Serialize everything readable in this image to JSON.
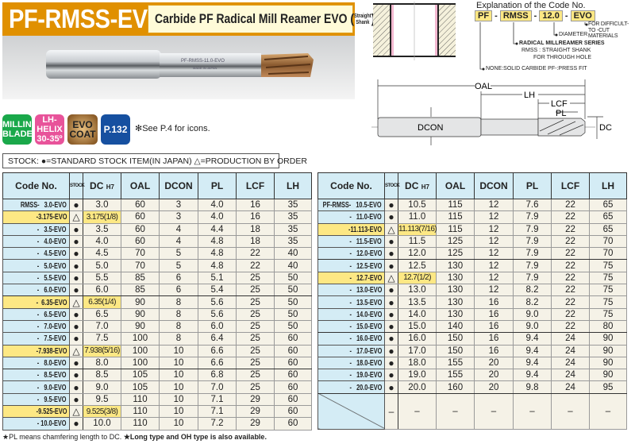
{
  "header": {
    "model": "PF-RMSS-EVO",
    "title": "Carbide PF Radical Mill Reamer EVO",
    "shank_type": [
      "Straight",
      "Shank"
    ]
  },
  "product_image": {
    "engraving": "PF-RMSS-11.0-EVO",
    "made_in": "MADE IN JAPAN"
  },
  "icons": [
    {
      "lines": [
        "MILLING",
        "BLADE"
      ],
      "color": "#1aa84a"
    },
    {
      "lines": [
        "LH-HELIX",
        "30-35º"
      ],
      "color": "#e8539a"
    },
    {
      "lines": [
        "EVO",
        "COAT"
      ],
      "color": "#a0702a"
    },
    {
      "lines": [
        "P.132"
      ],
      "color": "#1650a0"
    }
  ],
  "icons_note": "✻See P.4 for icons.",
  "stock_legend": "STOCK: ●=STANDARD STOCK ITEM(IN JAPAN)  △=PRODUCTION BY ORDER",
  "code_explanation": {
    "title": "Explanation of the Code No.",
    "parts": [
      "PF",
      "RMSS",
      "12.0",
      "EVO"
    ],
    "notes": {
      "evo": "FOR DIFFICULT-TO -CUT MATERIALS",
      "diameter": "DIAMETER",
      "series": "RADICAL MILLREAMER SERIES",
      "rmss": "RMSS : STRAIGHT SHANK",
      "rmss2": "FOR THROUGH HOLE",
      "pf": "NONE:SOLID CARBIDE  PF-:PRESS FIT"
    }
  },
  "diagram_labels": {
    "oal": "OAL",
    "lh": "LH",
    "lcf": "LCF",
    "pl": "PL",
    "dcon": "DCON",
    "dc": "DC"
  },
  "table_headers": {
    "code": "Code No.",
    "stock": "STOCK",
    "dc": "DC",
    "dc_tol": "H7",
    "oal": "OAL",
    "dcon": "DCON",
    "pl": "PL",
    "lcf": "LCF",
    "lh": "LH"
  },
  "left_table": [
    {
      "code": "RMSS-   3.0-EVO",
      "stock": "●",
      "dc": "3.0",
      "oal": "60",
      "dcon": "3",
      "pl": "4.0",
      "lcf": "16",
      "lh": "35"
    },
    {
      "code": "-3.175-EVO",
      "stock": "△",
      "dc": "3.175(1/8)",
      "oal": "60",
      "dcon": "3",
      "pl": "4.0",
      "lcf": "16",
      "lh": "35",
      "hl": true
    },
    {
      "code": "-   3.5-EVO",
      "stock": "●",
      "dc": "3.5",
      "oal": "60",
      "dcon": "4",
      "pl": "4.4",
      "lcf": "18",
      "lh": "35"
    },
    {
      "code": "-   4.0-EVO",
      "stock": "●",
      "dc": "4.0",
      "oal": "60",
      "dcon": "4",
      "pl": "4.8",
      "lcf": "18",
      "lh": "35"
    },
    {
      "code": "-   4.5-EVO",
      "stock": "●",
      "dc": "4.5",
      "oal": "70",
      "dcon": "5",
      "pl": "4.8",
      "lcf": "22",
      "lh": "40"
    },
    {
      "code": "-   5.0-EVO",
      "stock": "●",
      "dc": "5.0",
      "oal": "70",
      "dcon": "5",
      "pl": "4.8",
      "lcf": "22",
      "lh": "40"
    },
    {
      "code": "-   5.5-EVO",
      "stock": "●",
      "dc": "5.5",
      "oal": "85",
      "dcon": "6",
      "pl": "5.1",
      "lcf": "25",
      "lh": "50"
    },
    {
      "code": "-   6.0-EVO",
      "stock": "●",
      "dc": "6.0",
      "oal": "85",
      "dcon": "6",
      "pl": "5.4",
      "lcf": "25",
      "lh": "50",
      "sep": true
    },
    {
      "code": "-  6.35-EVO",
      "stock": "△",
      "dc": "6.35(1/4)",
      "oal": "90",
      "dcon": "8",
      "pl": "5.6",
      "lcf": "25",
      "lh": "50",
      "hl": true
    },
    {
      "code": "-   6.5-EVO",
      "stock": "●",
      "dc": "6.5",
      "oal": "90",
      "dcon": "8",
      "pl": "5.6",
      "lcf": "25",
      "lh": "50"
    },
    {
      "code": "-   7.0-EVO",
      "stock": "●",
      "dc": "7.0",
      "oal": "90",
      "dcon": "8",
      "pl": "6.0",
      "lcf": "25",
      "lh": "50"
    },
    {
      "code": "-   7.5-EVO",
      "stock": "●",
      "dc": "7.5",
      "oal": "100",
      "dcon": "8",
      "pl": "6.4",
      "lcf": "25",
      "lh": "60"
    },
    {
      "code": "-7.938-EVO",
      "stock": "△",
      "dc": "7.938(5/16)",
      "oal": "100",
      "dcon": "10",
      "pl": "6.6",
      "lcf": "25",
      "lh": "60",
      "hl": true
    },
    {
      "code": "-   8.0-EVO",
      "stock": "●",
      "dc": "8.0",
      "oal": "100",
      "dcon": "10",
      "pl": "6.6",
      "lcf": "25",
      "lh": "60",
      "sep": true
    },
    {
      "code": "-   8.5-EVO",
      "stock": "●",
      "dc": "8.5",
      "oal": "105",
      "dcon": "10",
      "pl": "6.8",
      "lcf": "25",
      "lh": "60"
    },
    {
      "code": "-   9.0-EVO",
      "stock": "●",
      "dc": "9.0",
      "oal": "105",
      "dcon": "10",
      "pl": "7.0",
      "lcf": "25",
      "lh": "60"
    },
    {
      "code": "-   9.5-EVO",
      "stock": "●",
      "dc": "9.5",
      "oal": "110",
      "dcon": "10",
      "pl": "7.1",
      "lcf": "29",
      "lh": "60"
    },
    {
      "code": "-9.525-EVO",
      "stock": "△",
      "dc": "9.525(3/8)",
      "oal": "110",
      "dcon": "10",
      "pl": "7.1",
      "lcf": "29",
      "lh": "60",
      "hl": true
    },
    {
      "code": "- 10.0-EVO",
      "stock": "●",
      "dc": "10.0",
      "oal": "110",
      "dcon": "10",
      "pl": "7.2",
      "lcf": "29",
      "lh": "60"
    }
  ],
  "right_table": [
    {
      "code": "PF-RMSS-   10.5-EVO",
      "stock": "●",
      "dc": "10.5",
      "oal": "115",
      "dcon": "12",
      "pl": "7.6",
      "lcf": "22",
      "lh": "65"
    },
    {
      "code": "-   11.0-EVO",
      "stock": "●",
      "dc": "11.0",
      "oal": "115",
      "dcon": "12",
      "pl": "7.9",
      "lcf": "22",
      "lh": "65"
    },
    {
      "code": "-11.113-EVO",
      "stock": "△",
      "dc": "11.113(7/16)",
      "oal": "115",
      "dcon": "12",
      "pl": "7.9",
      "lcf": "22",
      "lh": "65",
      "hl": true
    },
    {
      "code": "-   11.5-EVO",
      "stock": "●",
      "dc": "11.5",
      "oal": "125",
      "dcon": "12",
      "pl": "7.9",
      "lcf": "22",
      "lh": "70"
    },
    {
      "code": "-   12.0-EVO",
      "stock": "●",
      "dc": "12.0",
      "oal": "125",
      "dcon": "12",
      "pl": "7.9",
      "lcf": "22",
      "lh": "70",
      "sep": true
    },
    {
      "code": "-   12.5-EVO",
      "stock": "●",
      "dc": "12.5",
      "oal": "130",
      "dcon": "12",
      "pl": "7.9",
      "lcf": "22",
      "lh": "75"
    },
    {
      "code": "-   12.7-EVO",
      "stock": "△",
      "dc": "12.7(1/2)",
      "oal": "130",
      "dcon": "12",
      "pl": "7.9",
      "lcf": "22",
      "lh": "75",
      "hl": true
    },
    {
      "code": "-   13.0-EVO",
      "stock": "●",
      "dc": "13.0",
      "oal": "130",
      "dcon": "12",
      "pl": "8.2",
      "lcf": "22",
      "lh": "75"
    },
    {
      "code": "-   13.5-EVO",
      "stock": "●",
      "dc": "13.5",
      "oal": "130",
      "dcon": "16",
      "pl": "8.2",
      "lcf": "22",
      "lh": "75"
    },
    {
      "code": "-   14.0-EVO",
      "stock": "●",
      "dc": "14.0",
      "oal": "130",
      "dcon": "16",
      "pl": "9.0",
      "lcf": "22",
      "lh": "75"
    },
    {
      "code": "-   15.0-EVO",
      "stock": "●",
      "dc": "15.0",
      "oal": "140",
      "dcon": "16",
      "pl": "9.0",
      "lcf": "22",
      "lh": "80",
      "sep": true
    },
    {
      "code": "-   16.0-EVO",
      "stock": "●",
      "dc": "16.0",
      "oal": "150",
      "dcon": "16",
      "pl": "9.4",
      "lcf": "24",
      "lh": "90"
    },
    {
      "code": "-   17.0-EVO",
      "stock": "●",
      "dc": "17.0",
      "oal": "150",
      "dcon": "16",
      "pl": "9.4",
      "lcf": "24",
      "lh": "90"
    },
    {
      "code": "-   18.0-EVO",
      "stock": "●",
      "dc": "18.0",
      "oal": "155",
      "dcon": "20",
      "pl": "9.4",
      "lcf": "24",
      "lh": "90"
    },
    {
      "code": "-   19.0-EVO",
      "stock": "●",
      "dc": "19.0",
      "oal": "155",
      "dcon": "20",
      "pl": "9.4",
      "lcf": "24",
      "lh": "90"
    },
    {
      "code": "-   20.0-EVO",
      "stock": "●",
      "dc": "20.0",
      "oal": "160",
      "dcon": "20",
      "pl": "9.8",
      "lcf": "24",
      "lh": "95",
      "sep": true
    }
  ],
  "empty_row_mark": "–",
  "footnote": {
    "pl_note": "★PL means chamfering length to   DC.",
    "long_note": "★Long type and OH type is also available."
  }
}
